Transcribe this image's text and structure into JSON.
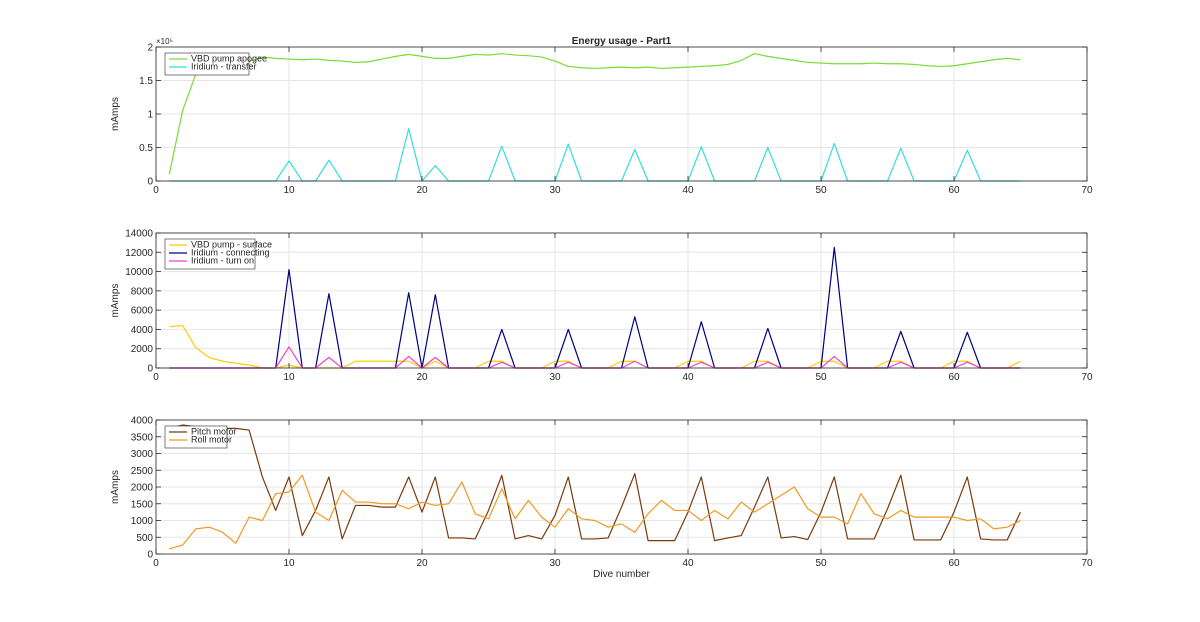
{
  "chart_data": [
    {
      "type": "line",
      "title": "Energy usage - Part1",
      "xlabel": "",
      "ylabel": "mAmps",
      "xlim": [
        0,
        70
      ],
      "ylim": [
        0,
        200000
      ],
      "xticks": [
        0,
        10,
        20,
        30,
        40,
        50,
        60,
        70
      ],
      "xtick_labels": [
        "0",
        "10",
        "20",
        "30",
        "40",
        "50",
        "60",
        "70"
      ],
      "yticks": [
        0,
        50000,
        100000,
        150000,
        200000
      ],
      "ytick_labels": [
        "0",
        "0.5",
        "1",
        "1.5",
        "2"
      ],
      "y_exponent_label": "×10⁵",
      "grid": true,
      "legend_position": "top-left",
      "series": [
        {
          "name": "VBD pump apogee",
          "color": "#77dd33",
          "x": [
            1,
            2,
            3,
            4,
            5,
            6,
            7,
            8,
            9,
            10,
            11,
            12,
            13,
            14,
            15,
            16,
            17,
            18,
            19,
            20,
            21,
            22,
            23,
            24,
            25,
            26,
            27,
            28,
            29,
            30,
            31,
            32,
            33,
            34,
            35,
            36,
            37,
            38,
            39,
            40,
            41,
            42,
            43,
            44,
            45,
            46,
            47,
            48,
            49,
            50,
            51,
            52,
            53,
            54,
            55,
            56,
            57,
            58,
            59,
            60,
            61,
            62,
            63,
            64,
            65
          ],
          "y": [
            10000,
            105000,
            160000,
            185000,
            185000,
            183000,
            178000,
            185000,
            183000,
            182000,
            181000,
            182000,
            180000,
            179000,
            177000,
            178000,
            182000,
            186000,
            189000,
            186000,
            183000,
            183000,
            186000,
            189000,
            188000,
            190000,
            188000,
            187000,
            185000,
            179000,
            171000,
            169000,
            168000,
            169000,
            170000,
            169000,
            170000,
            168000,
            169000,
            170000,
            171000,
            172000,
            174000,
            180000,
            190000,
            186000,
            183000,
            180000,
            177000,
            176000,
            175000,
            175000,
            175000,
            176000,
            175000,
            175000,
            174000,
            172000,
            171000,
            172000,
            175000,
            178000,
            181000,
            183000,
            181000
          ]
        },
        {
          "name": "Iridium - transfer",
          "color": "#33dddd",
          "x": [
            1,
            2,
            3,
            4,
            5,
            6,
            7,
            8,
            9,
            10,
            11,
            12,
            13,
            14,
            15,
            16,
            17,
            18,
            19,
            20,
            21,
            22,
            23,
            24,
            25,
            26,
            27,
            28,
            29,
            30,
            31,
            32,
            33,
            34,
            35,
            36,
            37,
            38,
            39,
            40,
            41,
            42,
            43,
            44,
            45,
            46,
            47,
            48,
            49,
            50,
            51,
            52,
            53,
            54,
            55,
            56,
            57,
            58,
            59,
            60,
            61,
            62,
            63,
            64,
            65
          ],
          "y": [
            0,
            0,
            0,
            0,
            0,
            0,
            0,
            0,
            0,
            30000,
            0,
            0,
            31000,
            0,
            0,
            0,
            0,
            0,
            78000,
            0,
            23000,
            0,
            0,
            0,
            0,
            52000,
            0,
            0,
            0,
            0,
            55000,
            0,
            0,
            0,
            0,
            47000,
            0,
            0,
            0,
            0,
            51000,
            0,
            0,
            0,
            0,
            50000,
            0,
            0,
            0,
            0,
            56000,
            0,
            0,
            0,
            0,
            49000,
            0,
            0,
            0,
            0,
            46000,
            0,
            0,
            0,
            0
          ]
        }
      ]
    },
    {
      "type": "line",
      "title": "",
      "xlabel": "",
      "ylabel": "mAmps",
      "xlim": [
        0,
        70
      ],
      "ylim": [
        0,
        14000
      ],
      "xticks": [
        0,
        10,
        20,
        30,
        40,
        50,
        60,
        70
      ],
      "xtick_labels": [
        "0",
        "10",
        "20",
        "30",
        "40",
        "50",
        "60",
        "70"
      ],
      "yticks": [
        0,
        2000,
        4000,
        6000,
        8000,
        10000,
        12000,
        14000
      ],
      "ytick_labels": [
        "0",
        "2000",
        "4000",
        "6000",
        "8000",
        "10000",
        "12000",
        "14000"
      ],
      "grid": true,
      "legend_position": "top-left",
      "series": [
        {
          "name": "VBD pump - surface",
          "color": "#ffcc00",
          "x": [
            1,
            2,
            3,
            4,
            5,
            6,
            7,
            8,
            9,
            10,
            11,
            12,
            13,
            14,
            15,
            16,
            17,
            18,
            19,
            20,
            21,
            22,
            23,
            24,
            25,
            26,
            27,
            28,
            29,
            30,
            31,
            32,
            33,
            34,
            35,
            36,
            37,
            38,
            39,
            40,
            41,
            42,
            43,
            44,
            45,
            46,
            47,
            48,
            49,
            50,
            51,
            52,
            53,
            54,
            55,
            56,
            57,
            58,
            59,
            60,
            61,
            62,
            63,
            64,
            65
          ],
          "y": [
            4300,
            4400,
            2100,
            1100,
            700,
            500,
            300,
            0,
            0,
            300,
            0,
            0,
            0,
            0,
            700,
            700,
            700,
            700,
            700,
            0,
            700,
            0,
            0,
            0,
            700,
            700,
            0,
            0,
            0,
            700,
            700,
            0,
            0,
            0,
            700,
            700,
            0,
            0,
            0,
            700,
            700,
            0,
            0,
            0,
            700,
            700,
            0,
            0,
            0,
            700,
            700,
            0,
            0,
            0,
            700,
            700,
            0,
            0,
            0,
            700,
            700,
            0,
            0,
            0,
            700
          ]
        },
        {
          "name": "Iridium - connecting",
          "color": "#000080",
          "x": [
            1,
            2,
            3,
            4,
            5,
            6,
            7,
            8,
            9,
            10,
            11,
            12,
            13,
            14,
            15,
            16,
            17,
            18,
            19,
            20,
            21,
            22,
            23,
            24,
            25,
            26,
            27,
            28,
            29,
            30,
            31,
            32,
            33,
            34,
            35,
            36,
            37,
            38,
            39,
            40,
            41,
            42,
            43,
            44,
            45,
            46,
            47,
            48,
            49,
            50,
            51,
            52,
            53,
            54,
            55,
            56,
            57,
            58,
            59,
            60,
            61,
            62,
            63,
            64,
            65
          ],
          "y": [
            0,
            0,
            0,
            0,
            0,
            0,
            0,
            0,
            0,
            10200,
            0,
            0,
            7700,
            0,
            0,
            0,
            0,
            0,
            7800,
            0,
            7600,
            0,
            0,
            0,
            0,
            4000,
            0,
            0,
            0,
            0,
            4000,
            0,
            0,
            0,
            0,
            5300,
            0,
            0,
            0,
            0,
            4800,
            0,
            0,
            0,
            0,
            4100,
            0,
            0,
            0,
            0,
            12500,
            0,
            0,
            0,
            0,
            3800,
            0,
            0,
            0,
            0,
            3700,
            0,
            0,
            0,
            0
          ]
        },
        {
          "name": "Iridium - turn on",
          "color": "#ee44cc",
          "x": [
            1,
            2,
            3,
            4,
            5,
            6,
            7,
            8,
            9,
            10,
            11,
            12,
            13,
            14,
            15,
            16,
            17,
            18,
            19,
            20,
            21,
            22,
            23,
            24,
            25,
            26,
            27,
            28,
            29,
            30,
            31,
            32,
            33,
            34,
            35,
            36,
            37,
            38,
            39,
            40,
            41,
            42,
            43,
            44,
            45,
            46,
            47,
            48,
            49,
            50,
            51,
            52,
            53,
            54,
            55,
            56,
            57,
            58,
            59,
            60,
            61,
            62,
            63,
            64,
            65
          ],
          "y": [
            0,
            0,
            0,
            0,
            0,
            0,
            0,
            0,
            0,
            2200,
            0,
            0,
            1100,
            0,
            0,
            0,
            0,
            0,
            1200,
            0,
            1100,
            0,
            0,
            0,
            0,
            600,
            0,
            0,
            0,
            0,
            600,
            0,
            0,
            0,
            0,
            700,
            0,
            0,
            0,
            0,
            600,
            0,
            0,
            0,
            0,
            600,
            0,
            0,
            0,
            0,
            1200,
            0,
            0,
            0,
            0,
            600,
            0,
            0,
            0,
            0,
            600,
            0,
            0,
            0,
            0
          ]
        }
      ]
    },
    {
      "type": "line",
      "title": "",
      "xlabel": "Dive number",
      "ylabel": "mAmps",
      "xlim": [
        0,
        70
      ],
      "ylim": [
        0,
        4000
      ],
      "xticks": [
        0,
        10,
        20,
        30,
        40,
        50,
        60,
        70
      ],
      "xtick_labels": [
        "0",
        "10",
        "20",
        "30",
        "40",
        "50",
        "60",
        "70"
      ],
      "yticks": [
        0,
        500,
        1000,
        1500,
        2000,
        2500,
        3000,
        3500,
        4000
      ],
      "ytick_labels": [
        "0",
        "500",
        "1000",
        "1500",
        "2000",
        "2500",
        "3000",
        "3500",
        "4000"
      ],
      "grid": true,
      "legend_position": "top-left",
      "series": [
        {
          "name": "Pitch motor",
          "color": "#7a3a0c",
          "x": [
            1,
            2,
            3,
            4,
            5,
            6,
            7,
            8,
            9,
            10,
            11,
            12,
            13,
            14,
            15,
            16,
            17,
            18,
            19,
            20,
            21,
            22,
            23,
            24,
            25,
            26,
            27,
            28,
            29,
            30,
            31,
            32,
            33,
            34,
            35,
            36,
            37,
            38,
            39,
            40,
            41,
            42,
            43,
            44,
            45,
            46,
            47,
            48,
            49,
            50,
            51,
            52,
            53,
            54,
            55,
            56,
            57,
            58,
            59,
            60,
            61,
            62,
            63,
            64,
            65
          ],
          "y": [
            3750,
            3850,
            3800,
            3800,
            3750,
            3750,
            3700,
            2300,
            1300,
            2300,
            550,
            1300,
            2300,
            450,
            1450,
            1450,
            1400,
            1400,
            2300,
            1250,
            2300,
            480,
            480,
            450,
            1300,
            2350,
            450,
            550,
            450,
            1150,
            2300,
            450,
            450,
            480,
            1400,
            2400,
            400,
            400,
            400,
            1250,
            2300,
            400,
            480,
            550,
            1400,
            2300,
            480,
            520,
            430,
            1250,
            2300,
            450,
            450,
            450,
            1350,
            2350,
            420,
            420,
            420,
            1250,
            2300,
            450,
            420,
            420,
            1250
          ]
        },
        {
          "name": "Roll motor",
          "color": "#ee9922",
          "x": [
            1,
            2,
            3,
            4,
            5,
            6,
            7,
            8,
            9,
            10,
            11,
            12,
            13,
            14,
            15,
            16,
            17,
            18,
            19,
            20,
            21,
            22,
            23,
            24,
            25,
            26,
            27,
            28,
            29,
            30,
            31,
            32,
            33,
            34,
            35,
            36,
            37,
            38,
            39,
            40,
            41,
            42,
            43,
            44,
            45,
            46,
            47,
            48,
            49,
            50,
            51,
            52,
            53,
            54,
            55,
            56,
            57,
            58,
            59,
            60,
            61,
            62,
            63,
            64,
            65
          ],
          "y": [
            150,
            270,
            750,
            800,
            650,
            320,
            1100,
            1000,
            1800,
            1850,
            2350,
            1250,
            1000,
            1900,
            1550,
            1550,
            1500,
            1500,
            1350,
            1550,
            1450,
            1500,
            2150,
            1200,
            1050,
            1950,
            1050,
            1600,
            1100,
            800,
            1350,
            1050,
            1000,
            800,
            900,
            650,
            1200,
            1600,
            1300,
            1300,
            1000,
            1300,
            1050,
            1550,
            1250,
            1500,
            1750,
            2000,
            1350,
            1100,
            1100,
            900,
            1800,
            1200,
            1050,
            1300,
            1100,
            1100,
            1100,
            1100,
            1000,
            1050,
            750,
            800,
            1000
          ]
        }
      ]
    }
  ]
}
